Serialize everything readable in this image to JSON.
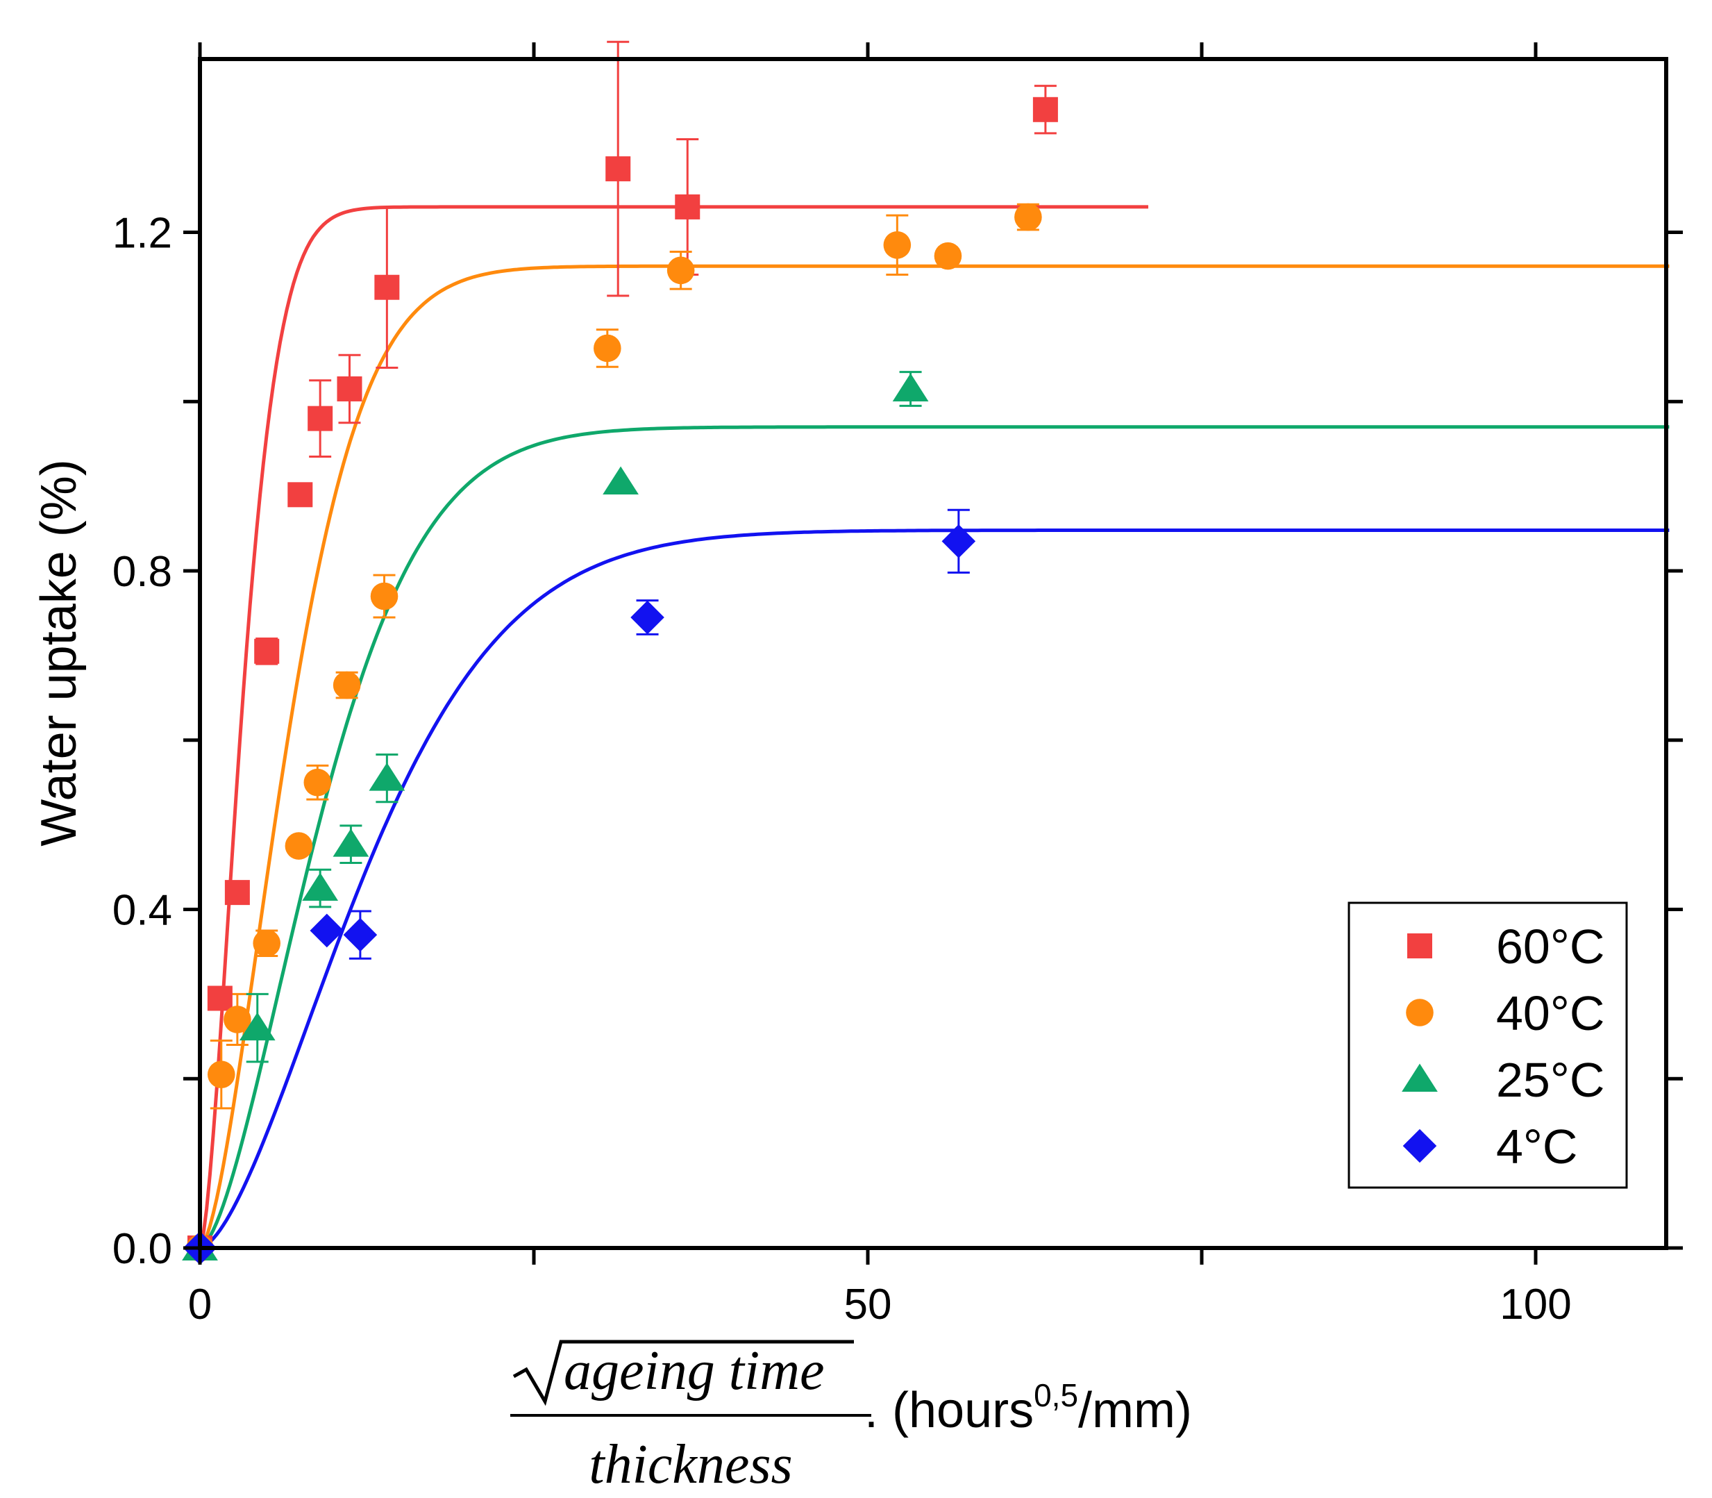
{
  "chart_data": {
    "type": "scatter",
    "title": "",
    "ylabel": "Water uptake (%)",
    "xlabel": {
      "numerator": "ageing time",
      "denominator": "thickness",
      "units_prefix": ". (hours",
      "units_sup": "0,5",
      "units_suffix": "/mm)"
    },
    "xlim": [
      0,
      110
    ],
    "ylim": [
      0,
      1.4
    ],
    "x_ticks": [
      0,
      50,
      100
    ],
    "x_tick_labels": [
      "0",
      "50",
      "100"
    ],
    "x_minor_ticks": [
      25,
      75
    ],
    "y_ticks": [
      0.0,
      0.4,
      0.8,
      1.2
    ],
    "y_tick_labels": [
      "0.0",
      "0.4",
      "0.8",
      "1.2"
    ],
    "y_minor_ticks": [
      0.2,
      0.6,
      1.0
    ],
    "legend_position": "bottom-right",
    "series": [
      {
        "name": "60°C",
        "color": "#f24040",
        "marker": "square",
        "points": [
          {
            "x": 0,
            "y": 0.0,
            "err": 0.0
          },
          {
            "x": 1.5,
            "y": 0.295,
            "err": 0.0
          },
          {
            "x": 2.8,
            "y": 0.42,
            "err": 0.0
          },
          {
            "x": 5,
            "y": 0.705,
            "err": 0.015
          },
          {
            "x": 7.5,
            "y": 0.89,
            "err": 0.0
          },
          {
            "x": 9,
            "y": 0.98,
            "err": 0.045
          },
          {
            "x": 11.2,
            "y": 1.015,
            "err": 0.04
          },
          {
            "x": 14,
            "y": 1.135,
            "err": 0.095
          },
          {
            "x": 31.3,
            "y": 1.275,
            "err": 0.15
          },
          {
            "x": 36.5,
            "y": 1.23,
            "err": 0.08
          },
          {
            "x": 63.3,
            "y": 1.345,
            "err": 0.028
          }
        ],
        "fit": {
          "plateau": 1.23,
          "k": 0.26,
          "x_end": 71
        }
      },
      {
        "name": "40°C",
        "color": "#ff8a0d",
        "marker": "circle",
        "points": [
          {
            "x": 0,
            "y": 0.0,
            "err": 0.0
          },
          {
            "x": 1.6,
            "y": 0.205,
            "err": 0.04
          },
          {
            "x": 2.8,
            "y": 0.27,
            "err": 0.03
          },
          {
            "x": 5,
            "y": 0.36,
            "err": 0.015
          },
          {
            "x": 7.4,
            "y": 0.475,
            "err": 0.0
          },
          {
            "x": 8.8,
            "y": 0.55,
            "err": 0.02
          },
          {
            "x": 11,
            "y": 0.665,
            "err": 0.015
          },
          {
            "x": 13.8,
            "y": 0.77,
            "err": 0.025
          },
          {
            "x": 30.5,
            "y": 1.063,
            "err": 0.022
          },
          {
            "x": 36,
            "y": 1.155,
            "err": 0.022
          },
          {
            "x": 52.2,
            "y": 1.185,
            "err": 0.035
          },
          {
            "x": 56,
            "y": 1.172,
            "err": 0.0
          },
          {
            "x": 62,
            "y": 1.218,
            "err": 0.015
          }
        ],
        "fit": {
          "plateau": 1.16,
          "k": 0.125,
          "x_end": 110
        }
      },
      {
        "name": "25°C",
        "color": "#0fa86b",
        "marker": "triangle",
        "points": [
          {
            "x": 0,
            "y": 0.0,
            "err": 0.0
          },
          {
            "x": 4.3,
            "y": 0.26,
            "err": 0.04
          },
          {
            "x": 9,
            "y": 0.425,
            "err": 0.022
          },
          {
            "x": 11.3,
            "y": 0.477,
            "err": 0.022
          },
          {
            "x": 14,
            "y": 0.555,
            "err": 0.028
          },
          {
            "x": 31.5,
            "y": 0.905,
            "err": 0.0
          },
          {
            "x": 53.2,
            "y": 1.015,
            "err": 0.02
          }
        ],
        "fit": {
          "plateau": 0.97,
          "k": 0.092,
          "x_end": 110
        }
      },
      {
        "name": "4°C",
        "color": "#1212f0",
        "marker": "diamond",
        "points": [
          {
            "x": 0,
            "y": 0.0,
            "err": 0.0
          },
          {
            "x": 9.5,
            "y": 0.375,
            "err": 0.0
          },
          {
            "x": 12,
            "y": 0.37,
            "err": 0.028
          },
          {
            "x": 33.5,
            "y": 0.745,
            "err": 0.02
          },
          {
            "x": 56.8,
            "y": 0.835,
            "err": 0.037
          }
        ],
        "fit": {
          "plateau": 0.848,
          "k": 0.067,
          "x_end": 110
        }
      }
    ]
  }
}
